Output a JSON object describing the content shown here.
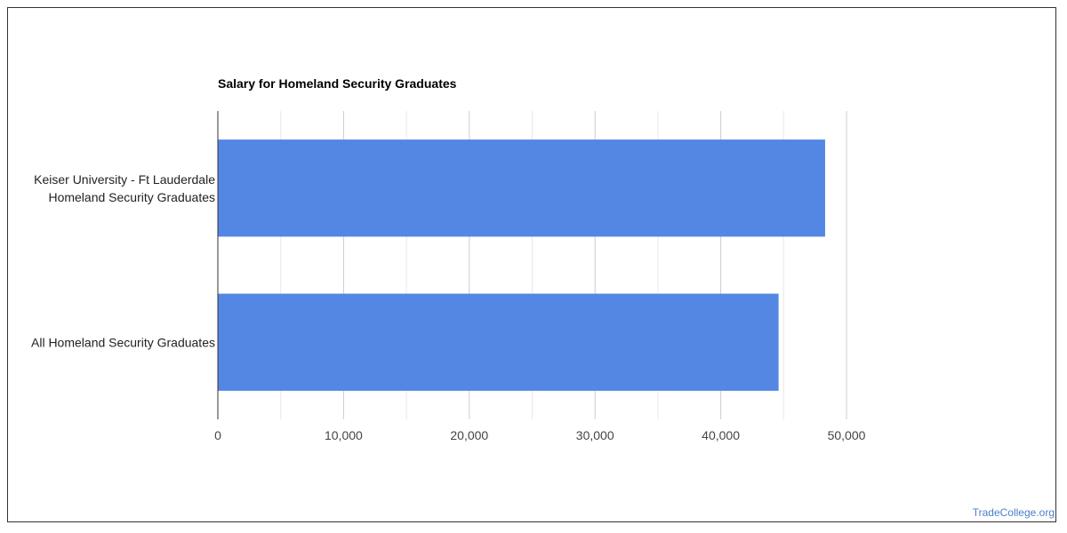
{
  "chart_data": {
    "type": "bar",
    "orientation": "horizontal",
    "title": "Salary for Homeland Security Graduates",
    "categories": [
      [
        "Keiser University - Ft Lauderdale",
        "Homeland Security Graduates"
      ],
      [
        "All Homeland Security Graduates"
      ]
    ],
    "values": [
      48300,
      44600
    ],
    "xlim": [
      0,
      50000
    ],
    "xticks": [
      "0",
      "10,000",
      "20,000",
      "30,000",
      "40,000",
      "50,000"
    ],
    "xtick_values": [
      0,
      10000,
      20000,
      30000,
      40000,
      50000
    ],
    "minor_grid_values": [
      5000,
      15000,
      25000,
      35000,
      45000
    ],
    "bar_color": "#5486e3",
    "gridline_color": "#cccccc",
    "minor_gridline_color": "#e8e8e8",
    "xlabel": "",
    "ylabel": "",
    "grid": true,
    "legend": "none"
  },
  "watermark": "TradeCollege.org"
}
